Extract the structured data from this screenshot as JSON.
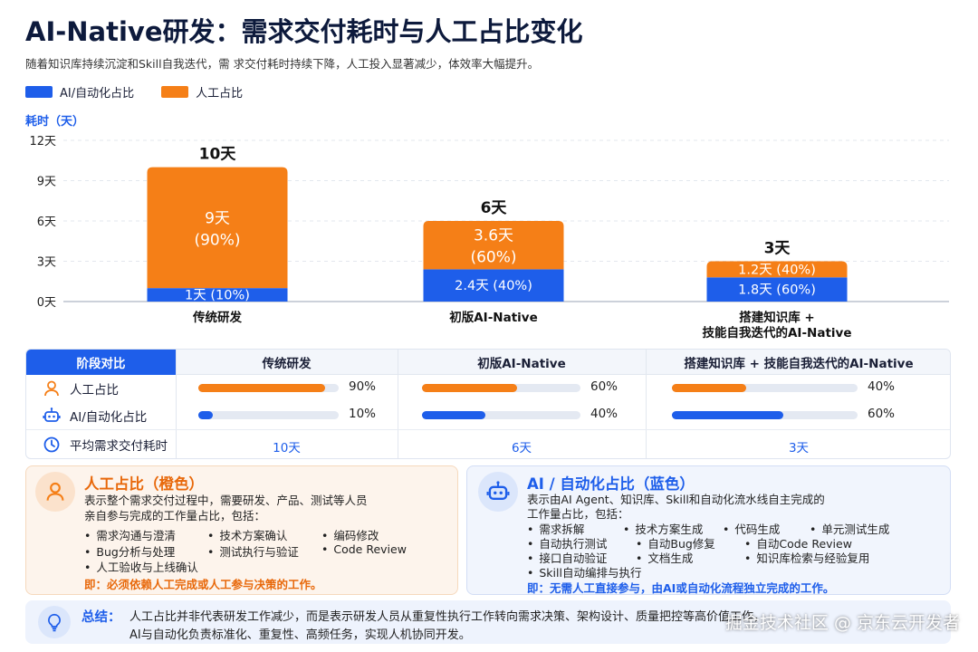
{
  "header": {
    "title": "AI-Native研发：需求交付耗时与人工占比变化",
    "subtitle": "随着知识库持续沉淀和Skill自我迭代，需 求交付耗时持续下降，人工投入显著减少，体效率大幅提升。"
  },
  "legend": [
    {
      "label": "AI/自动化占比",
      "color": "#1e5eea"
    },
    {
      "label": "人工占比",
      "color": "#f57f17"
    }
  ],
  "chart_data": {
    "type": "bar",
    "stacked": true,
    "ylabel": "耗时（天）",
    "ylim": [
      0,
      12
    ],
    "yticks": [
      "0天",
      "3天",
      "6天",
      "9天",
      "12天"
    ],
    "categories": [
      "传统研发",
      "初版AI-Native",
      "搭建知识库 +|技能自我迭代的AI-Native"
    ],
    "totals": [
      "10天",
      "6天",
      "3天"
    ],
    "series": [
      {
        "name": "AI/自动化占比",
        "color": "#1e5eea",
        "values": [
          1,
          2.4,
          1.8
        ],
        "labels": [
          "1天 (10%)",
          "2.4天 (40%)",
          "1.8天 (60%)"
        ]
      },
      {
        "name": "人工占比",
        "color": "#f57f17",
        "values": [
          9,
          3.6,
          1.2
        ],
        "labels": [
          "9天|(90%)",
          "3.6天|(60%)",
          "1.2天 (40%)"
        ]
      }
    ],
    "grid": true
  },
  "compare": {
    "header": "阶段对比",
    "columns": [
      "传统研发",
      "初版AI-Native",
      "搭建知识库 + 技能自我迭代的AI-Native"
    ],
    "rows": [
      {
        "label": "人工占比",
        "icon": "person-icon",
        "values": [
          0.9,
          0.6,
          0.4
        ],
        "texts": [
          "90%",
          "60%",
          "40%"
        ],
        "color": "#f57f17"
      },
      {
        "label": "AI/自动化占比",
        "icon": "robot-icon",
        "values": [
          0.1,
          0.4,
          0.6
        ],
        "texts": [
          "10%",
          "40%",
          "60%"
        ],
        "color": "#1e5eea"
      },
      {
        "label": "平均需求交付耗时",
        "icon": "clock-icon",
        "texts": [
          "10天",
          "6天",
          "3天"
        ]
      }
    ]
  },
  "human_card": {
    "title": "人工占比（橙色）",
    "desc1": "表示整个需求交付过程中，需要研发、产品、测试等人员",
    "desc2": "亲自参与完成的工作量占比，包括：",
    "items": [
      "需求沟通与澄清",
      "技术方案确认",
      "编码修改",
      "Bug分析与处理",
      "测试执行与验证",
      "Code Review",
      "人工验收与上线确认"
    ],
    "conclusion": "即：必须依赖人工完成或人工参与决策的工作。"
  },
  "ai_card": {
    "title": "AI / 自动化占比（蓝色）",
    "desc1": "表示由AI Agent、知识库、Skill和自动化流水线自主完成的",
    "desc2": "工作量占比，包括：",
    "items": [
      "需求拆解",
      "技术方案生成",
      "代码生成",
      "单元测试生成",
      "自动执行测试",
      "自动Bug修复",
      "自动Code Review",
      "接口自动验证",
      "文档生成",
      "知识库检索与经验复用",
      "Skill自动编排与执行"
    ],
    "conclusion": "即：无需人工直接参与，由AI或自动化流程独立完成的工作。"
  },
  "summary": {
    "title": "总结：",
    "line1": "人工占比并非代表研发工作减少，而是表示研发人员从重复性执行工作转向需求决策、架构设计、质量把控等高价值工作，",
    "line2": "AI与自动化负责标准化、重复性、高频任务，实现人机协同开发。"
  },
  "watermark": "掘金技术社区 @ 京东云开发者"
}
